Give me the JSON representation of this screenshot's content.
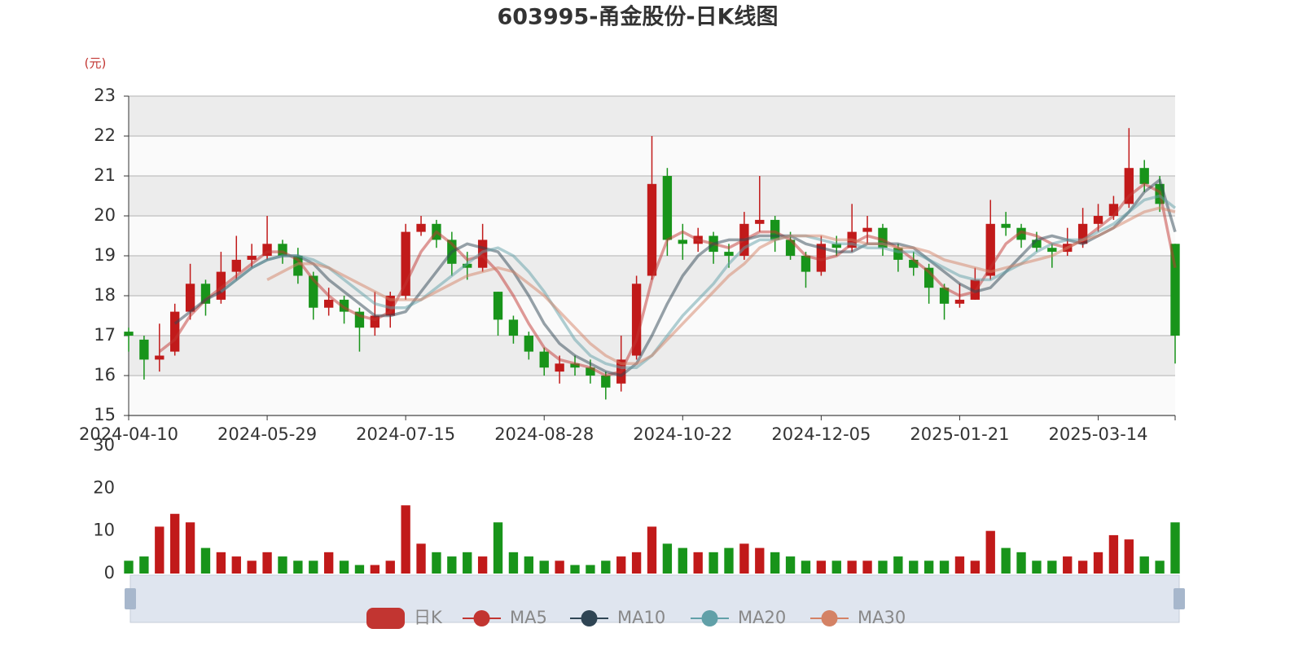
{
  "chart_data": {
    "type": "candlestick",
    "title": "603995-甬金股份-日K线图",
    "y_unit": "(元)",
    "up_color": "#c11a1a",
    "down_color": "#18941a",
    "grid": true,
    "ylim": [
      15,
      23
    ],
    "yticks": [
      15,
      16,
      17,
      18,
      19,
      20,
      21,
      22,
      23
    ],
    "categories": [
      "2024-04-10",
      null,
      null,
      null,
      null,
      null,
      null,
      null,
      null,
      "2024-05-29",
      null,
      null,
      null,
      null,
      null,
      null,
      null,
      null,
      "2024-07-15",
      null,
      null,
      null,
      null,
      null,
      null,
      null,
      null,
      "2024-08-28",
      null,
      null,
      null,
      null,
      null,
      null,
      null,
      null,
      "2024-10-22",
      null,
      null,
      null,
      null,
      null,
      null,
      null,
      null,
      "2024-12-05",
      null,
      null,
      null,
      null,
      null,
      null,
      null,
      null,
      "2025-01-21",
      null,
      null,
      null,
      null,
      null,
      null,
      null,
      null,
      "2025-03-14",
      null,
      null,
      null,
      null,
      null
    ],
    "series": [
      {
        "name": "日K",
        "color": "#c23531",
        "values": [
          [
            17.1,
            17.0,
            16.6,
            17.2
          ],
          [
            16.9,
            16.4,
            15.9,
            17.0
          ],
          [
            16.4,
            16.5,
            16.1,
            17.3
          ],
          [
            16.6,
            17.6,
            16.5,
            17.8
          ],
          [
            17.6,
            18.3,
            17.4,
            18.8
          ],
          [
            18.3,
            17.8,
            17.5,
            18.4
          ],
          [
            17.9,
            18.6,
            17.8,
            19.1
          ],
          [
            18.6,
            18.9,
            18.4,
            19.5
          ],
          [
            18.9,
            19.0,
            18.7,
            19.3
          ],
          [
            19.0,
            19.3,
            18.9,
            20.0
          ],
          [
            19.3,
            19.0,
            18.8,
            19.4
          ],
          [
            19.0,
            18.5,
            18.3,
            19.2
          ],
          [
            18.5,
            17.7,
            17.4,
            18.6
          ],
          [
            17.7,
            17.9,
            17.5,
            18.2
          ],
          [
            17.9,
            17.6,
            17.3,
            18.0
          ],
          [
            17.6,
            17.2,
            16.6,
            17.7
          ],
          [
            17.2,
            17.5,
            17.0,
            18.1
          ],
          [
            17.5,
            18.0,
            17.2,
            18.1
          ],
          [
            18.0,
            19.6,
            17.9,
            19.8
          ],
          [
            19.6,
            19.8,
            19.5,
            20.0
          ],
          [
            19.8,
            19.4,
            19.2,
            19.9
          ],
          [
            19.4,
            18.8,
            18.5,
            19.6
          ],
          [
            18.8,
            18.7,
            18.4,
            19.1
          ],
          [
            18.7,
            19.4,
            18.6,
            19.8
          ],
          [
            18.1,
            17.4,
            17.0,
            18.1
          ],
          [
            17.4,
            17.0,
            16.8,
            17.5
          ],
          [
            17.0,
            16.6,
            16.4,
            17.1
          ],
          [
            16.6,
            16.2,
            16.0,
            16.7
          ],
          [
            16.1,
            16.3,
            15.8,
            16.5
          ],
          [
            16.3,
            16.2,
            16.0,
            16.5
          ],
          [
            16.2,
            16.0,
            15.8,
            16.4
          ],
          [
            16.0,
            15.7,
            15.4,
            16.1
          ],
          [
            15.8,
            16.4,
            15.6,
            17.0
          ],
          [
            16.5,
            18.3,
            16.4,
            18.5
          ],
          [
            18.5,
            20.8,
            18.4,
            22.0
          ],
          [
            21.0,
            19.4,
            19.0,
            21.2
          ],
          [
            19.4,
            19.3,
            18.9,
            19.8
          ],
          [
            19.3,
            19.5,
            19.1,
            19.7
          ],
          [
            19.5,
            19.1,
            18.8,
            19.6
          ],
          [
            19.1,
            19.0,
            18.7,
            19.3
          ],
          [
            19.0,
            19.8,
            18.9,
            20.1
          ],
          [
            19.8,
            19.9,
            19.6,
            21.0
          ],
          [
            19.9,
            19.4,
            19.1,
            20.0
          ],
          [
            19.4,
            19.0,
            18.9,
            19.6
          ],
          [
            19.0,
            18.6,
            18.2,
            19.1
          ],
          [
            18.6,
            19.3,
            18.5,
            19.5
          ],
          [
            19.3,
            19.2,
            19.0,
            19.5
          ],
          [
            19.2,
            19.6,
            19.1,
            20.3
          ],
          [
            19.6,
            19.7,
            19.3,
            20.0
          ],
          [
            19.7,
            19.2,
            19.0,
            19.8
          ],
          [
            19.2,
            18.9,
            18.6,
            19.3
          ],
          [
            18.9,
            18.7,
            18.5,
            19.1
          ],
          [
            18.7,
            18.2,
            17.8,
            18.8
          ],
          [
            18.2,
            17.8,
            17.4,
            18.3
          ],
          [
            17.8,
            17.9,
            17.7,
            18.3
          ],
          [
            17.9,
            18.4,
            17.9,
            18.7
          ],
          [
            18.5,
            19.8,
            18.4,
            20.4
          ],
          [
            19.8,
            19.7,
            19.5,
            20.1
          ],
          [
            19.7,
            19.4,
            19.2,
            19.8
          ],
          [
            19.4,
            19.2,
            19.1,
            19.6
          ],
          [
            19.2,
            19.1,
            18.7,
            19.3
          ],
          [
            19.1,
            19.3,
            19.0,
            19.7
          ],
          [
            19.3,
            19.8,
            19.2,
            20.2
          ],
          [
            19.8,
            20.0,
            19.6,
            20.3
          ],
          [
            20.0,
            20.3,
            19.9,
            20.5
          ],
          [
            20.3,
            21.2,
            20.2,
            22.2
          ],
          [
            21.2,
            20.8,
            20.6,
            21.4
          ],
          [
            20.8,
            20.3,
            20.1,
            21.0
          ],
          [
            19.3,
            17.0,
            16.3,
            19.3
          ]
        ]
      },
      {
        "name": "MA5",
        "color": "#c23531",
        "values": [
          null,
          null,
          16.6,
          16.9,
          17.5,
          17.9,
          18.2,
          18.5,
          18.8,
          19.1,
          19.1,
          18.9,
          18.4,
          18.0,
          17.7,
          17.5,
          17.4,
          17.6,
          18.3,
          19.1,
          19.6,
          19.3,
          18.9,
          19.0,
          18.6,
          18.0,
          17.3,
          16.7,
          16.4,
          16.3,
          16.2,
          16.0,
          16.1,
          16.9,
          18.4,
          19.4,
          19.6,
          19.4,
          19.3,
          19.2,
          19.4,
          19.6,
          19.6,
          19.4,
          19.0,
          18.9,
          19.0,
          19.3,
          19.5,
          19.4,
          19.2,
          18.9,
          18.6,
          18.2,
          18.0,
          18.1,
          18.7,
          19.3,
          19.6,
          19.5,
          19.3,
          19.2,
          19.4,
          19.7,
          20.0,
          20.5,
          20.8,
          20.6,
          18.7
        ]
      },
      {
        "name": "MA10",
        "color": "#2f4554",
        "values": [
          null,
          null,
          null,
          17.3,
          17.6,
          17.9,
          18.1,
          18.4,
          18.7,
          18.9,
          19.0,
          19.0,
          18.8,
          18.4,
          18.1,
          17.8,
          17.5,
          17.5,
          17.6,
          18.1,
          18.6,
          19.1,
          19.3,
          19.2,
          19.1,
          18.6,
          18.0,
          17.3,
          16.8,
          16.5,
          16.3,
          16.1,
          16.0,
          16.3,
          17.0,
          17.8,
          18.5,
          19.0,
          19.3,
          19.4,
          19.4,
          19.5,
          19.5,
          19.5,
          19.3,
          19.2,
          19.1,
          19.1,
          19.3,
          19.3,
          19.3,
          19.2,
          18.9,
          18.6,
          18.3,
          18.1,
          18.2,
          18.6,
          19.0,
          19.4,
          19.5,
          19.4,
          19.3,
          19.5,
          19.7,
          20.1,
          20.6,
          20.9,
          19.6
        ]
      },
      {
        "name": "MA20",
        "color": "#61a0a8",
        "values": [
          null,
          null,
          null,
          null,
          null,
          null,
          18.1,
          18.4,
          18.7,
          18.9,
          19.0,
          19.0,
          18.9,
          18.7,
          18.4,
          18.1,
          17.8,
          17.7,
          17.7,
          17.9,
          18.2,
          18.5,
          18.8,
          19.1,
          19.2,
          19.0,
          18.6,
          18.1,
          17.5,
          16.9,
          16.5,
          16.3,
          16.2,
          16.2,
          16.5,
          17.0,
          17.5,
          17.9,
          18.3,
          18.8,
          19.2,
          19.4,
          19.4,
          19.5,
          19.5,
          19.4,
          19.3,
          19.3,
          19.2,
          19.2,
          19.1,
          19.1,
          18.9,
          18.7,
          18.5,
          18.4,
          18.4,
          18.6,
          18.8,
          19.1,
          19.3,
          19.4,
          19.4,
          19.6,
          19.8,
          20.1,
          20.4,
          20.5,
          20.2
        ]
      },
      {
        "name": "MA30",
        "color": "#d48265",
        "values": [
          null,
          null,
          null,
          null,
          null,
          null,
          null,
          null,
          null,
          18.4,
          18.6,
          18.8,
          18.8,
          18.7,
          18.5,
          18.3,
          18.1,
          17.9,
          17.9,
          17.9,
          18.1,
          18.3,
          18.5,
          18.6,
          18.7,
          18.6,
          18.3,
          18.0,
          17.6,
          17.2,
          16.8,
          16.5,
          16.3,
          16.3,
          16.5,
          16.9,
          17.3,
          17.7,
          18.1,
          18.5,
          18.8,
          19.2,
          19.4,
          19.5,
          19.5,
          19.5,
          19.4,
          19.4,
          19.3,
          19.3,
          19.2,
          19.2,
          19.1,
          18.9,
          18.8,
          18.7,
          18.6,
          18.7,
          18.8,
          18.9,
          19.0,
          19.2,
          19.4,
          19.5,
          19.7,
          19.9,
          20.1,
          20.2,
          20.1
        ]
      }
    ],
    "volume": {
      "ylim": [
        0,
        30
      ],
      "yticks": [
        0,
        10,
        20,
        30
      ],
      "values": [
        3,
        4,
        11,
        14,
        12,
        6,
        5,
        4,
        3,
        5,
        4,
        3,
        3,
        5,
        3,
        2,
        2,
        3,
        16,
        7,
        5,
        4,
        5,
        4,
        12,
        5,
        4,
        3,
        3,
        2,
        2,
        3,
        4,
        5,
        11,
        7,
        6,
        5,
        5,
        6,
        7,
        6,
        5,
        4,
        3,
        3,
        3,
        3,
        3,
        3,
        4,
        3,
        3,
        3,
        4,
        3,
        10,
        6,
        5,
        3,
        3,
        4,
        3,
        5,
        9,
        8,
        4,
        3,
        12
      ]
    }
  }
}
